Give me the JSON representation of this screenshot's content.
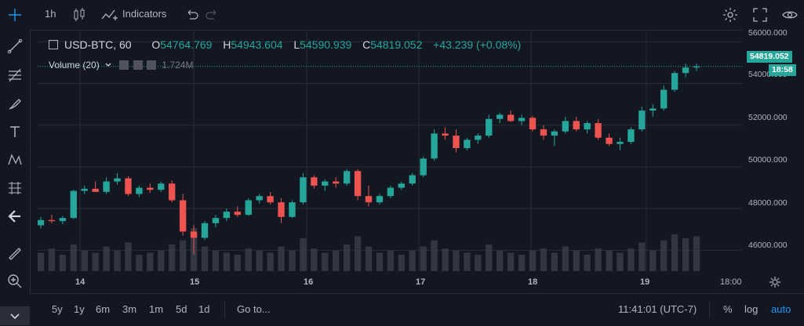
{
  "toolbar": {
    "interval": "1h",
    "indicators_label": "Indicators"
  },
  "legend": {
    "symbol": "USD-BTC, 60",
    "open_label": "O",
    "open": "54764.769",
    "high_label": "H",
    "high": "54943.604",
    "low_label": "L",
    "low": "54590.939",
    "close_label": "C",
    "close": "54819.052",
    "change": "+43.239 (+0.08%)"
  },
  "volume_study": {
    "label": "Volume (20)",
    "value": "1.724M"
  },
  "price_axis": {
    "ticks": [
      "56000.000",
      "54000.000",
      "52000.000",
      "50000.000",
      "48000.000",
      "46000.000"
    ],
    "last_price": "54819.052",
    "countdown": "18:58"
  },
  "time_axis": {
    "ticks": [
      "14",
      "15",
      "16",
      "17",
      "18",
      "19",
      "18:00"
    ]
  },
  "bottom": {
    "ranges": [
      "5y",
      "1y",
      "6m",
      "3m",
      "1m",
      "5d",
      "1d"
    ],
    "goto": "Go to...",
    "clock": "11:41:01 (UTC-7)",
    "percent": "%",
    "log": "log",
    "auto": "auto"
  },
  "colors": {
    "up": "#26a69a",
    "down": "#ef5350",
    "accent": "#2196f3",
    "background": "#131722"
  },
  "chart_data": {
    "type": "candlestick",
    "symbol": "USD-BTC",
    "interval": "60",
    "ylim": [
      45000,
      56500
    ],
    "x_ticks": [
      "14",
      "15",
      "16",
      "17",
      "18",
      "19",
      "18:00"
    ],
    "candles": [
      [
        47200,
        47600,
        47050,
        47450
      ],
      [
        47450,
        47700,
        47300,
        47400
      ],
      [
        47400,
        47650,
        47250,
        47550
      ],
      [
        47550,
        48900,
        47500,
        48850
      ],
      [
        48850,
        49100,
        48700,
        48950
      ],
      [
        48950,
        49300,
        48850,
        48800
      ],
      [
        48800,
        49500,
        48700,
        49300
      ],
      [
        49300,
        49700,
        49150,
        49450
      ],
      [
        49450,
        49550,
        48600,
        48700
      ],
      [
        48700,
        49100,
        48550,
        49000
      ],
      [
        49000,
        49200,
        48750,
        48900
      ],
      [
        48900,
        49300,
        48800,
        49200
      ],
      [
        49200,
        49350,
        48300,
        48400
      ],
      [
        48400,
        48700,
        46700,
        46900
      ],
      [
        46900,
        47200,
        45800,
        46600
      ],
      [
        46600,
        47400,
        46500,
        47300
      ],
      [
        47300,
        47700,
        47100,
        47550
      ],
      [
        47550,
        48000,
        47400,
        47850
      ],
      [
        47850,
        48100,
        47600,
        47700
      ],
      [
        47700,
        48500,
        47650,
        48400
      ],
      [
        48400,
        48700,
        48250,
        48600
      ],
      [
        48600,
        48800,
        48200,
        48300
      ],
      [
        48300,
        48500,
        47300,
        47600
      ],
      [
        47600,
        48400,
        47550,
        48300
      ],
      [
        48300,
        49700,
        48200,
        49500
      ],
      [
        49500,
        49600,
        48950,
        49100
      ],
      [
        49100,
        49400,
        48850,
        49300
      ],
      [
        49300,
        49500,
        49000,
        49200
      ],
      [
        49200,
        49900,
        49100,
        49800
      ],
      [
        49800,
        49900,
        48400,
        48600
      ],
      [
        48600,
        49100,
        48100,
        48300
      ],
      [
        48300,
        48700,
        48200,
        48600
      ],
      [
        48600,
        49100,
        48500,
        49000
      ],
      [
        49000,
        49300,
        48900,
        49200
      ],
      [
        49200,
        49700,
        49100,
        49600
      ],
      [
        49600,
        50500,
        49500,
        50400
      ],
      [
        50400,
        51800,
        50300,
        51600
      ],
      [
        51600,
        51900,
        51300,
        51500
      ],
      [
        51500,
        51800,
        50700,
        50900
      ],
      [
        50900,
        51400,
        50800,
        51300
      ],
      [
        51300,
        51600,
        51100,
        51500
      ],
      [
        51500,
        52500,
        51400,
        52300
      ],
      [
        52300,
        52600,
        52100,
        52500
      ],
      [
        52500,
        52700,
        52150,
        52200
      ],
      [
        52200,
        52500,
        52000,
        52350
      ],
      [
        52350,
        52450,
        51700,
        51800
      ],
      [
        51800,
        52000,
        51300,
        51500
      ],
      [
        51500,
        51800,
        51000,
        51700
      ],
      [
        51700,
        52400,
        51600,
        52200
      ],
      [
        52200,
        52400,
        51700,
        51800
      ],
      [
        51800,
        52200,
        51600,
        52100
      ],
      [
        52100,
        52300,
        51300,
        51400
      ],
      [
        51400,
        51600,
        51000,
        51100
      ],
      [
        51100,
        51400,
        50800,
        51200
      ],
      [
        51200,
        51900,
        51100,
        51800
      ],
      [
        51800,
        52900,
        51700,
        52700
      ],
      [
        52700,
        53000,
        52400,
        52800
      ],
      [
        52800,
        53900,
        52700,
        53700
      ],
      [
        53700,
        54600,
        53600,
        54500
      ],
      [
        54500,
        54950,
        54300,
        54764
      ],
      [
        54764,
        54943,
        54590,
        54819
      ]
    ],
    "volumes": [
      0.9,
      1.1,
      0.8,
      1.3,
      1.0,
      0.9,
      1.2,
      1.0,
      1.4,
      0.8,
      0.9,
      1.0,
      1.3,
      1.5,
      2.1,
      1.2,
      1.0,
      0.9,
      0.8,
      1.1,
      1.0,
      0.9,
      1.2,
      1.0,
      1.6,
      1.1,
      0.9,
      1.0,
      1.3,
      1.7,
      1.2,
      0.9,
      1.0,
      0.8,
      1.0,
      1.2,
      1.5,
      1.1,
      1.0,
      0.9,
      0.8,
      1.3,
      1.0,
      0.9,
      0.8,
      1.0,
      1.1,
      0.9,
      1.2,
      1.0,
      0.8,
      1.1,
      1.0,
      0.9,
      1.1,
      1.4,
      1.0,
      1.5,
      1.8,
      1.6,
      1.7
    ]
  }
}
